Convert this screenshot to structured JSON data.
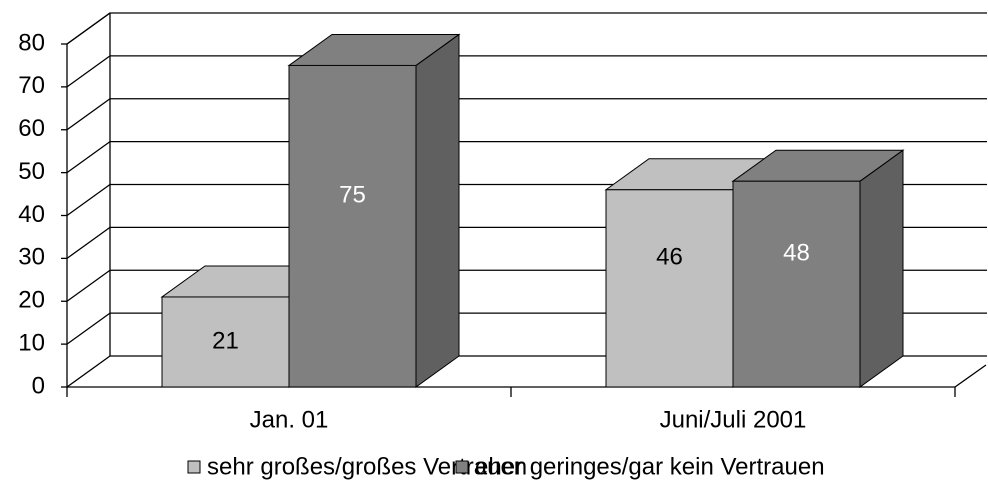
{
  "chart_data": {
    "type": "bar3d",
    "categories": [
      "Jan. 01",
      "Juni/Juli 2001"
    ],
    "series": [
      {
        "name": "sehr großes/großes Vertrauen",
        "color": "#c0c0c0",
        "label_color": "#000000",
        "values": [
          21,
          46
        ]
      },
      {
        "name": "eher geringes/gar kein Vertrauen",
        "color": "#808080",
        "label_color": "#ffffff",
        "values": [
          75,
          48
        ]
      }
    ],
    "ylim": [
      0,
      80
    ],
    "yticks": [
      0,
      10,
      20,
      30,
      40,
      50,
      60,
      70,
      80
    ],
    "grid": true
  }
}
